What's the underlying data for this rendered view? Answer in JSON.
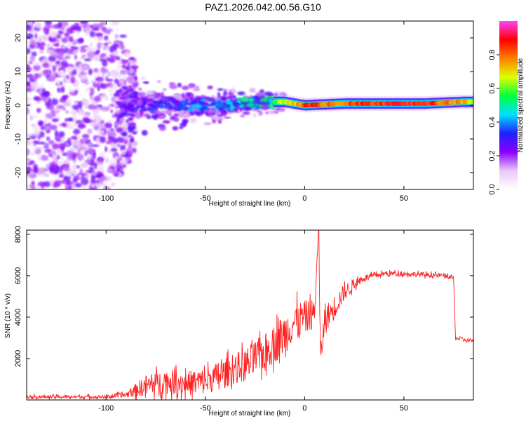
{
  "title": "PAZ1.2026.042.00.56.G10",
  "chart_data": [
    {
      "type": "heatmap",
      "title": "PAZ1.2026.042.00.56.G10",
      "xlabel": "Height of straight line (km)",
      "ylabel": "Frequency (Hz)",
      "xlim": [
        -140,
        85
      ],
      "ylim": [
        -25,
        25
      ],
      "xticks": [
        -100,
        -50,
        0,
        50
      ],
      "xtick_labels": [
        "-100",
        "-50",
        "0",
        "50"
      ],
      "yticks": [
        -20,
        -10,
        0,
        10,
        20
      ],
      "ytick_labels": [
        "-20",
        "-10",
        "0",
        "10",
        "20"
      ],
      "colorbar": {
        "label": "Normalized spectral amplitude",
        "range": [
          0,
          1
        ],
        "ticks": [
          0.0,
          0.2,
          0.4,
          0.6,
          0.8
        ],
        "tick_labels": [
          "0.0",
          "0.2",
          "0.4",
          "0.6",
          "0.8"
        ],
        "colormap": [
          "#ffffff",
          "#e8c8f8",
          "#8b00ff",
          "#2020ff",
          "#00e0ff",
          "#00ff40",
          "#e0ff00",
          "#ff8000",
          "#ff0000",
          "#ff40ff"
        ]
      },
      "ridge": {
        "description_values": "dominant frequency near 0 Hz; noisy scatter for heights below -90 km, coherent line near 0-1 Hz above -20 km",
        "x": [
          -140,
          -120,
          -100,
          -90,
          -80,
          -60,
          -40,
          -20,
          -10,
          0,
          20,
          40,
          60,
          80,
          85
        ],
        "center_hz": [
          0,
          0,
          0,
          0,
          0,
          0,
          0,
          1,
          1,
          0,
          0.5,
          0.5,
          0.5,
          1,
          1
        ],
        "peak_amplitude": [
          0.25,
          0.25,
          0.25,
          0.3,
          0.35,
          0.4,
          0.45,
          0.55,
          0.7,
          0.9,
          0.85,
          0.95,
          0.95,
          0.8,
          0.7
        ]
      }
    },
    {
      "type": "line",
      "xlabel": "Height of straight line (km)",
      "ylabel": "SNR (10 * v/v)",
      "xlim": [
        -140,
        85
      ],
      "ylim": [
        0,
        8200
      ],
      "xticks": [
        -100,
        -50,
        0,
        50
      ],
      "xtick_labels": [
        "-100",
        "-50",
        "0",
        "50"
      ],
      "yticks": [
        2000,
        4000,
        6000,
        8000
      ],
      "ytick_labels": [
        "2000",
        "4000",
        "6000",
        "8000"
      ],
      "series": [
        {
          "name": "SNR",
          "color": "#ff2020",
          "x": [
            -140,
            -120,
            -100,
            -90,
            -80,
            -70,
            -60,
            -50,
            -40,
            -30,
            -20,
            -10,
            -5,
            0,
            5,
            7,
            8,
            10,
            15,
            20,
            25,
            30,
            40,
            50,
            60,
            70,
            75,
            76,
            80,
            85
          ],
          "y": [
            150,
            150,
            150,
            250,
            700,
            900,
            800,
            900,
            1300,
            1700,
            2300,
            3200,
            3800,
            4000,
            4200,
            8200,
            2000,
            3800,
            4500,
            5200,
            5600,
            5900,
            6100,
            6100,
            6050,
            6000,
            5900,
            3000,
            2900,
            2850
          ],
          "noise_amplitude": [
            80,
            80,
            80,
            150,
            500,
            600,
            600,
            650,
            700,
            800,
            900,
            1000,
            900,
            800,
            700,
            0,
            600,
            700,
            600,
            400,
            250,
            150,
            120,
            120,
            120,
            120,
            120,
            100,
            100,
            100
          ]
        }
      ]
    }
  ]
}
